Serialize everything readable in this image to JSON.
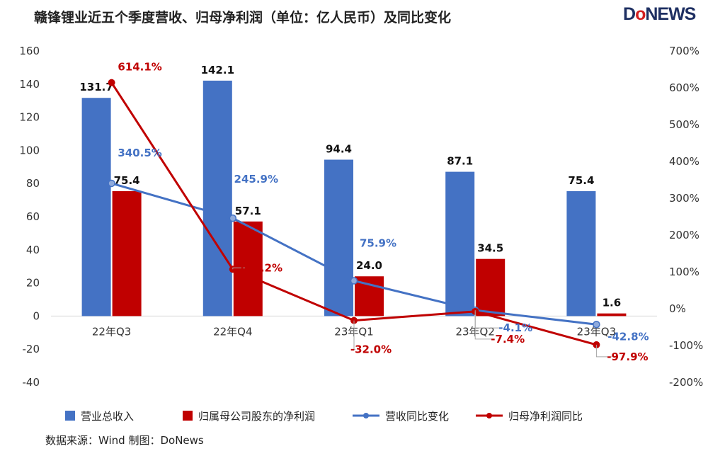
{
  "title": "赣锋锂业近五个季度营收、归母净利润（单位：亿人民币）及同比变化",
  "logo": "DoNEWS",
  "source": "数据来源：Wind  制图：DoNews",
  "colors": {
    "revenue": "#4472c4",
    "profit": "#c00000",
    "rev_yoy": "#4472c4",
    "profit_yoy": "#c00000"
  },
  "chart_data": {
    "type": "bar",
    "title": "赣锋锂业近五个季度营收、归母净利润（单位：亿人民币）及同比变化",
    "categories": [
      "22年Q3",
      "22年Q4",
      "23年Q1",
      "23年Q2",
      "23年Q3"
    ],
    "left_axis": {
      "ylim": [
        -40,
        160
      ],
      "ticks": [
        "-40",
        "-20",
        "0",
        "20",
        "40",
        "60",
        "80",
        "100",
        "120",
        "140",
        "160"
      ]
    },
    "right_axis": {
      "ylim": [
        -200,
        700
      ],
      "ticks": [
        "-200%",
        "-100%",
        "0%",
        "100%",
        "200%",
        "300%",
        "400%",
        "500%",
        "600%",
        "700%"
      ]
    },
    "bar_series": [
      {
        "name": "营业总收入",
        "values": [
          131.7,
          142.1,
          94.4,
          87.1,
          75.4
        ],
        "labels": [
          "131.7",
          "142.1",
          "94.4",
          "87.1",
          "75.4"
        ]
      },
      {
        "name": "归属母公司股东的净利润",
        "values": [
          75.4,
          57.1,
          24.0,
          34.5,
          1.6
        ],
        "labels": [
          "75.4",
          "57.1",
          "24.0",
          "34.5",
          "1.6"
        ]
      }
    ],
    "line_series": [
      {
        "name": "营收同比变化",
        "values": [
          340.5,
          245.9,
          75.9,
          -4.1,
          -42.8
        ],
        "labels": [
          "340.5%",
          "245.9%",
          "75.9%",
          "-4.1%",
          "-42.8%"
        ]
      },
      {
        "name": "归母净利润同比",
        "values": [
          614.1,
          107.2,
          -32.0,
          -7.4,
          -97.9
        ],
        "labels": [
          "614.1%",
          "107.2%",
          "-32.0%",
          "-7.4%",
          "-97.9%"
        ]
      }
    ]
  }
}
